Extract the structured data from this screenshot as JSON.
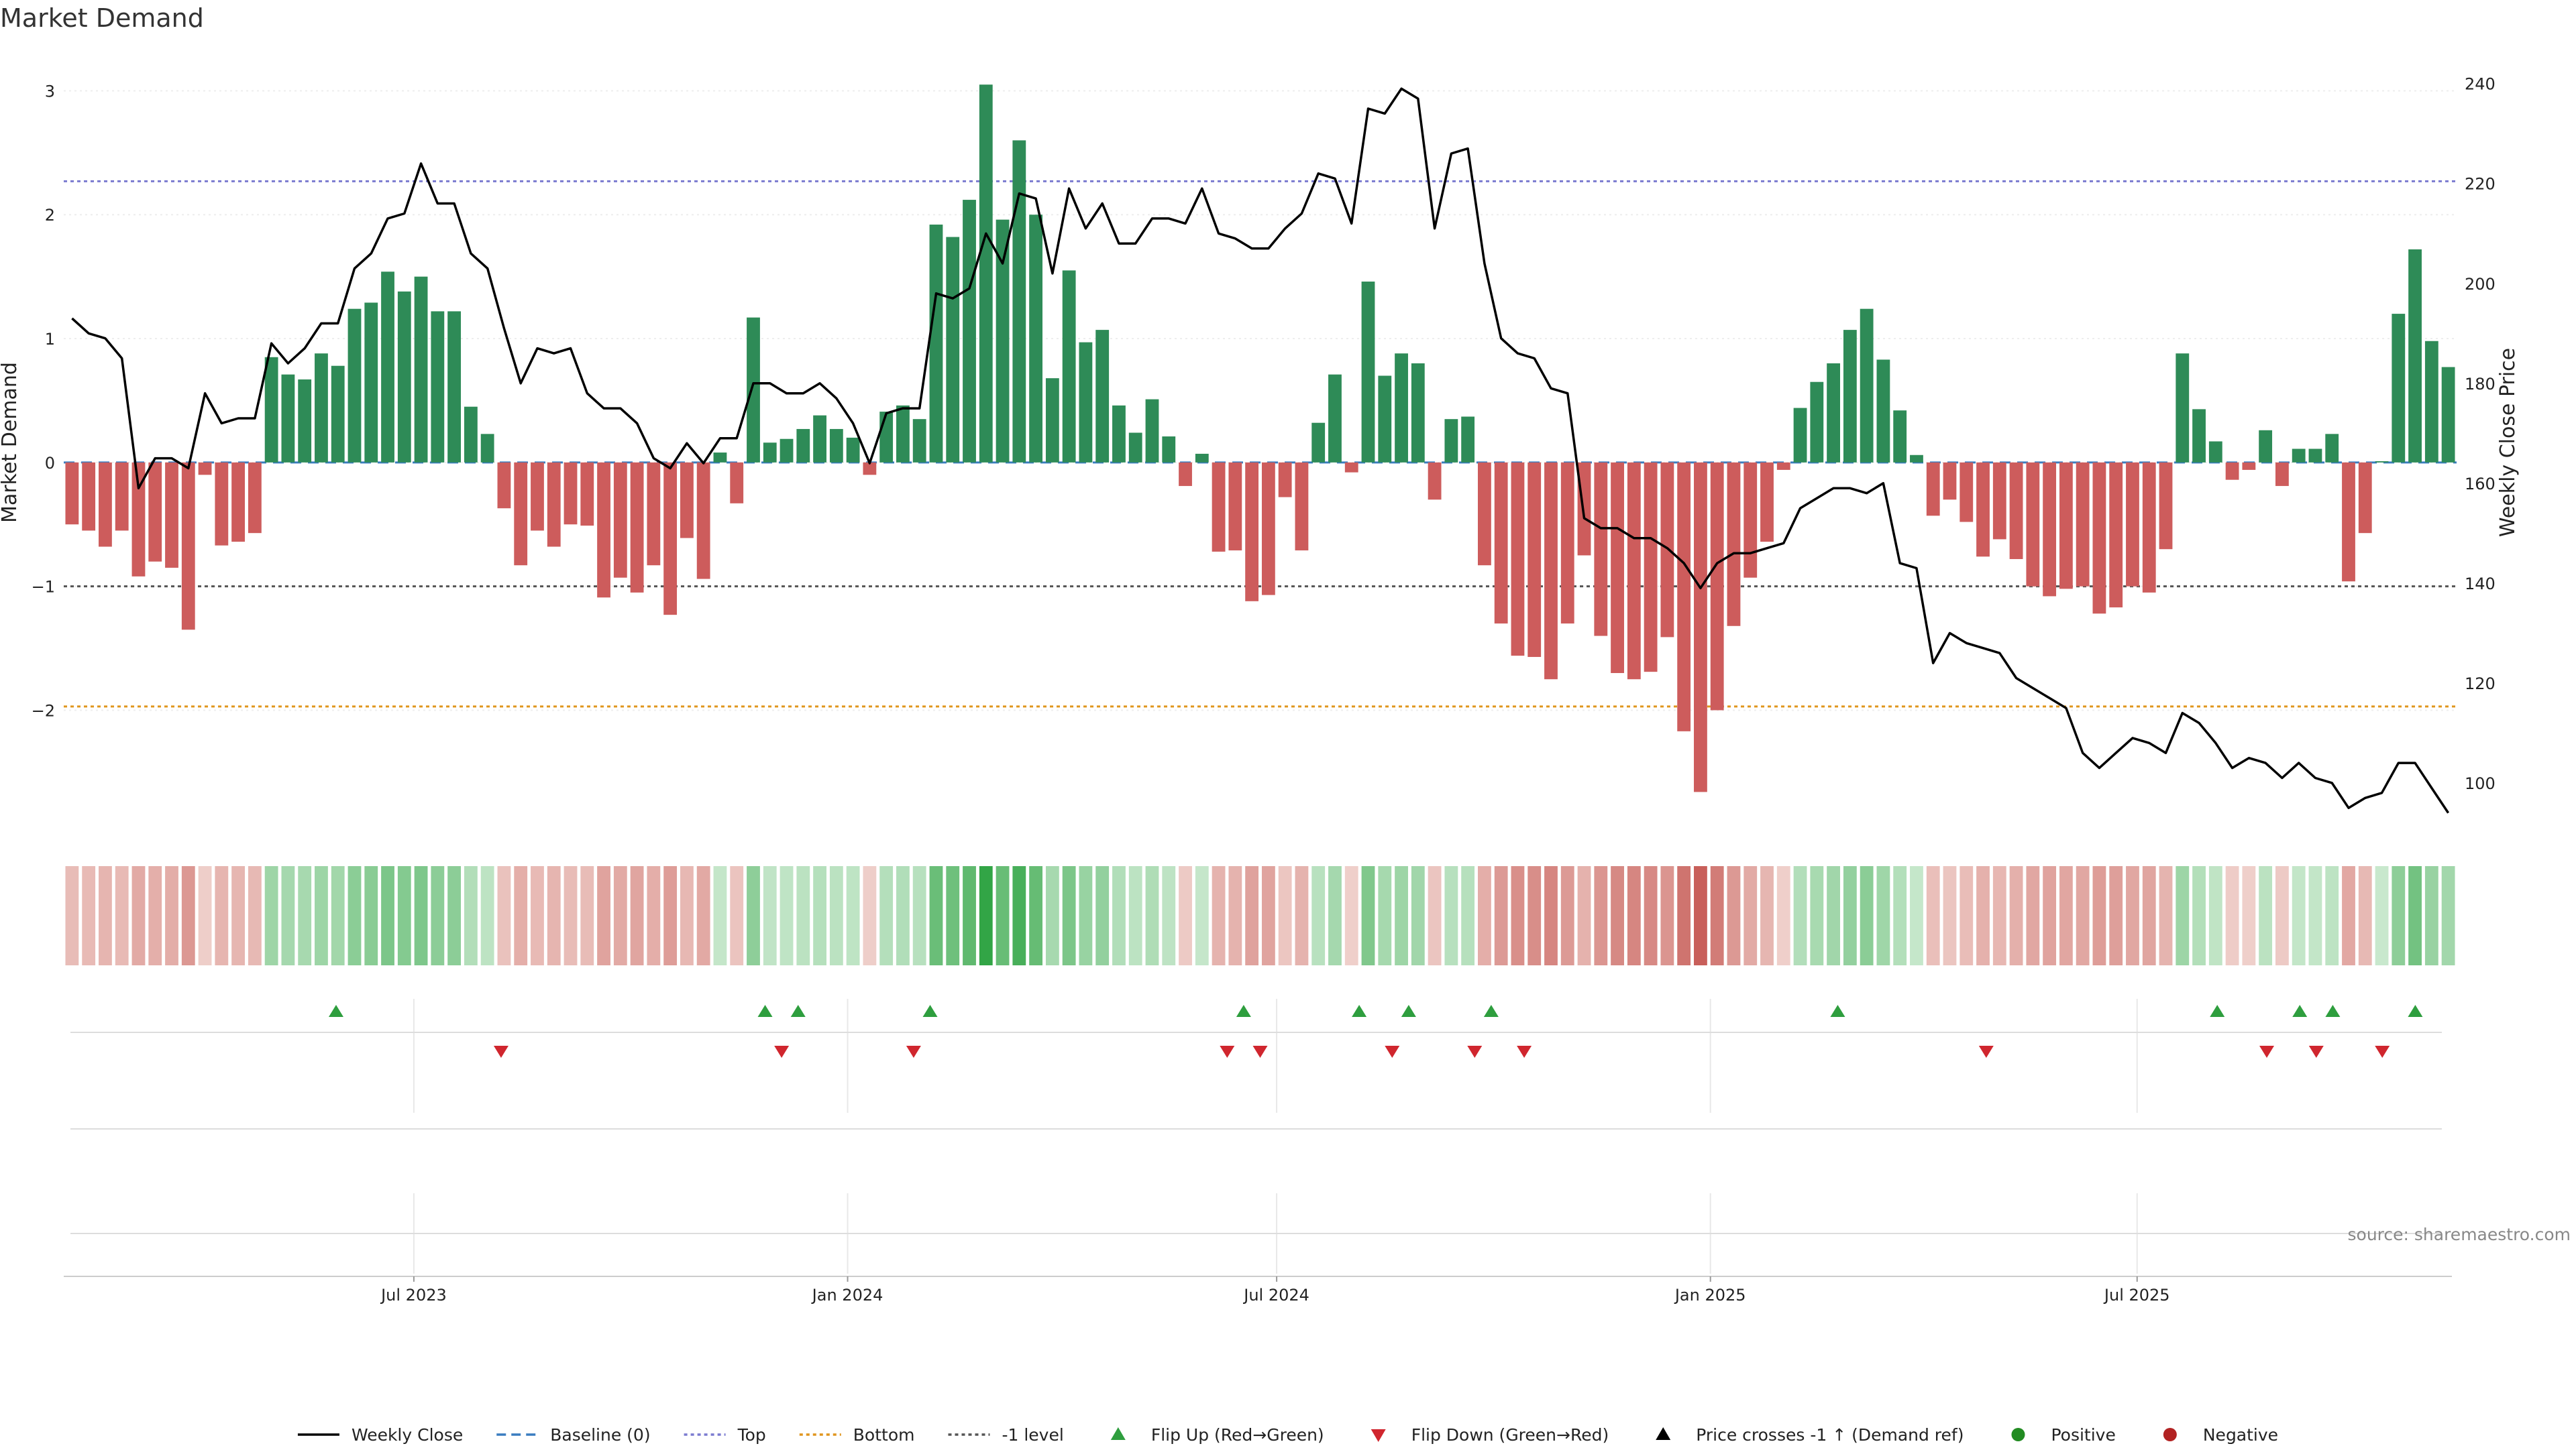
{
  "chart_data": {
    "type": "bar",
    "title": "Market Demand",
    "ylabel_left": "Market Demand",
    "ylabel_right": "Weekly Close Price",
    "source": "source: sharemaestro.com",
    "y_left": {
      "min": -2.95,
      "max": 3.3,
      "ticks": [
        -2,
        -1,
        0,
        1,
        2,
        3
      ],
      "tick_labels": [
        "−2",
        "−1",
        "0",
        "1",
        "2",
        "3"
      ]
    },
    "y_right": {
      "min": 91,
      "max": 246,
      "ticks": [
        100,
        120,
        140,
        160,
        180,
        200,
        220,
        240
      ],
      "tick_labels": [
        "100",
        "120",
        "140",
        "160",
        "180",
        "200",
        "220",
        "240"
      ]
    },
    "x_axis": {
      "type": "date",
      "start": "2023-02-06",
      "end": "2025-11-10",
      "labels": [
        {
          "date": "2023-07-01",
          "label": "Jul 2023"
        },
        {
          "date": "2024-01-01",
          "label": "Jan 2024"
        },
        {
          "date": "2024-07-01",
          "label": "Jul 2024"
        },
        {
          "date": "2025-01-01",
          "label": "Jan 2025"
        },
        {
          "date": "2025-07-01",
          "label": "Jul 2025"
        }
      ]
    },
    "reference_lines": [
      {
        "name": "Top",
        "value": 2.27,
        "color": "#7b7bd0",
        "style": "dotted"
      },
      {
        "name": "Bottom",
        "value": -1.97,
        "color": "#e0961e",
        "style": "dotted"
      },
      {
        "name": "-1 level",
        "value": -1.0,
        "color": "#555555",
        "style": "dotted"
      },
      {
        "name": "Baseline (0)",
        "value": 0,
        "color": "#3a7dc0",
        "style": "dashed"
      }
    ],
    "colors": {
      "positive": "#2e8b57",
      "negative": "#cd5c5c",
      "price": "#000000",
      "flip_up": "#2e9e3e",
      "flip_down": "#d0262e"
    },
    "series": [
      {
        "name": "Market Demand",
        "values": [
          -0.5,
          -0.55,
          -0.68,
          -0.55,
          -0.92,
          -0.8,
          -0.85,
          -1.35,
          -0.1,
          -0.67,
          -0.64,
          -0.57,
          0.85,
          0.71,
          0.67,
          0.88,
          0.78,
          1.24,
          1.29,
          1.54,
          1.38,
          1.5,
          1.22,
          1.22,
          0.45,
          0.23,
          -0.37,
          -0.83,
          -0.55,
          -0.68,
          -0.5,
          -0.51,
          -1.09,
          -0.93,
          -1.05,
          -0.83,
          -1.23,
          -0.61,
          -0.94,
          0.08,
          -0.33,
          1.17,
          0.16,
          0.19,
          0.27,
          0.38,
          0.27,
          0.2,
          -0.1,
          0.41,
          0.46,
          0.35,
          1.92,
          1.82,
          2.12,
          3.05,
          1.96,
          2.6,
          2.0,
          0.68,
          1.55,
          0.97,
          1.07,
          0.46,
          0.24,
          0.51,
          0.21,
          -0.19,
          0.07,
          -0.72,
          -0.71,
          -1.12,
          -1.07,
          -0.28,
          -0.71,
          0.32,
          0.71,
          -0.08,
          1.46,
          0.7,
          0.88,
          0.8,
          -0.3,
          0.35,
          0.37,
          -0.83,
          -1.3,
          -1.56,
          -1.57,
          -1.75,
          -1.3,
          -0.75,
          -1.4,
          -1.7,
          -1.75,
          -1.69,
          -1.41,
          -2.17,
          -2.66,
          -2.0,
          -1.32,
          -0.93,
          -0.64,
          -0.06,
          0.44,
          0.65,
          0.8,
          1.07,
          1.24,
          0.83,
          0.42,
          0.06,
          -0.43,
          -0.3,
          -0.48,
          -0.76,
          -0.62,
          -0.78,
          -1.0,
          -1.08,
          -1.02,
          -1.0,
          -1.22,
          -1.17,
          -1.0,
          -1.05,
          -0.7,
          0.88,
          0.43,
          0.17,
          -0.14,
          -0.06,
          0.26,
          -0.19,
          0.11,
          0.11,
          0.23,
          -0.96,
          -0.57,
          0.01,
          1.2,
          1.72,
          0.98,
          0.77
        ]
      },
      {
        "name": "Weekly Close",
        "values": [
          193,
          190,
          189,
          185,
          159,
          165,
          165,
          163,
          178,
          172,
          173,
          173,
          188,
          184,
          187,
          192,
          192,
          203,
          206,
          213,
          214,
          224,
          216,
          216,
          206,
          203,
          191,
          180,
          187,
          186,
          187,
          178,
          175,
          175,
          172,
          165,
          163,
          168,
          164,
          169,
          169,
          180,
          180,
          178,
          178,
          180,
          177,
          172,
          164,
          174,
          175,
          175,
          198,
          197,
          199,
          210,
          204,
          218,
          217,
          202,
          219,
          211,
          216,
          208,
          208,
          213,
          213,
          212,
          219,
          210,
          209,
          207,
          207,
          211,
          214,
          222,
          221,
          212,
          235,
          234,
          239,
          237,
          211,
          226,
          227,
          204,
          189,
          186,
          185,
          179,
          178,
          153,
          151,
          151,
          149,
          149,
          147,
          144,
          139,
          144,
          146,
          146,
          147,
          148,
          155,
          157,
          159,
          159,
          158,
          160,
          144,
          143,
          124,
          130,
          128,
          127,
          126,
          121,
          119,
          117,
          115,
          106,
          103,
          106,
          109,
          108,
          106,
          114,
          112,
          108,
          103,
          105,
          104,
          101,
          104,
          101,
          100,
          95,
          97,
          98,
          104,
          104,
          99,
          94
        ]
      }
    ],
    "heatmap_strip": {
      "description_values": "same as Market Demand"
    },
    "flip_up_dates": [
      "2023-05-29",
      "2023-11-27",
      "2023-12-11",
      "2024-02-05",
      "2024-06-17",
      "2024-08-05",
      "2024-08-26",
      "2024-09-30",
      "2025-02-24",
      "2025-08-04",
      "2025-09-08",
      "2025-09-22",
      "2025-10-27"
    ],
    "flip_down_dates": [
      "2023-08-07",
      "2023-12-04",
      "2024-01-29",
      "2024-06-10",
      "2024-06-24",
      "2024-08-19",
      "2024-09-23",
      "2024-10-14",
      "2025-04-28",
      "2025-08-25",
      "2025-09-15",
      "2025-10-13"
    ],
    "legend": [
      {
        "label": "Weekly Close",
        "marker": "line",
        "color": "#000000"
      },
      {
        "label": "Baseline (0)",
        "marker": "dashed",
        "color": "#3a7dc0"
      },
      {
        "label": "Top",
        "marker": "dotted",
        "color": "#7b7bd0"
      },
      {
        "label": "Bottom",
        "marker": "dotted",
        "color": "#e0961e"
      },
      {
        "label": "-1 level",
        "marker": "dotted",
        "color": "#555555"
      },
      {
        "label": "Flip Up (Red→Green)",
        "marker": "triangle-up",
        "color": "#2e9e3e"
      },
      {
        "label": "Flip Down (Green→Red)",
        "marker": "triangle-down",
        "color": "#d0262e"
      },
      {
        "label": "Price crosses -1 ↑ (Demand ref)",
        "marker": "triangle-up",
        "color": "#000000"
      },
      {
        "label": "Positive",
        "marker": "circle",
        "color": "#228b22"
      },
      {
        "label": "Negative",
        "marker": "circle",
        "color": "#b22222"
      }
    ],
    "legend_placement": "bottom-center",
    "grid": true
  }
}
